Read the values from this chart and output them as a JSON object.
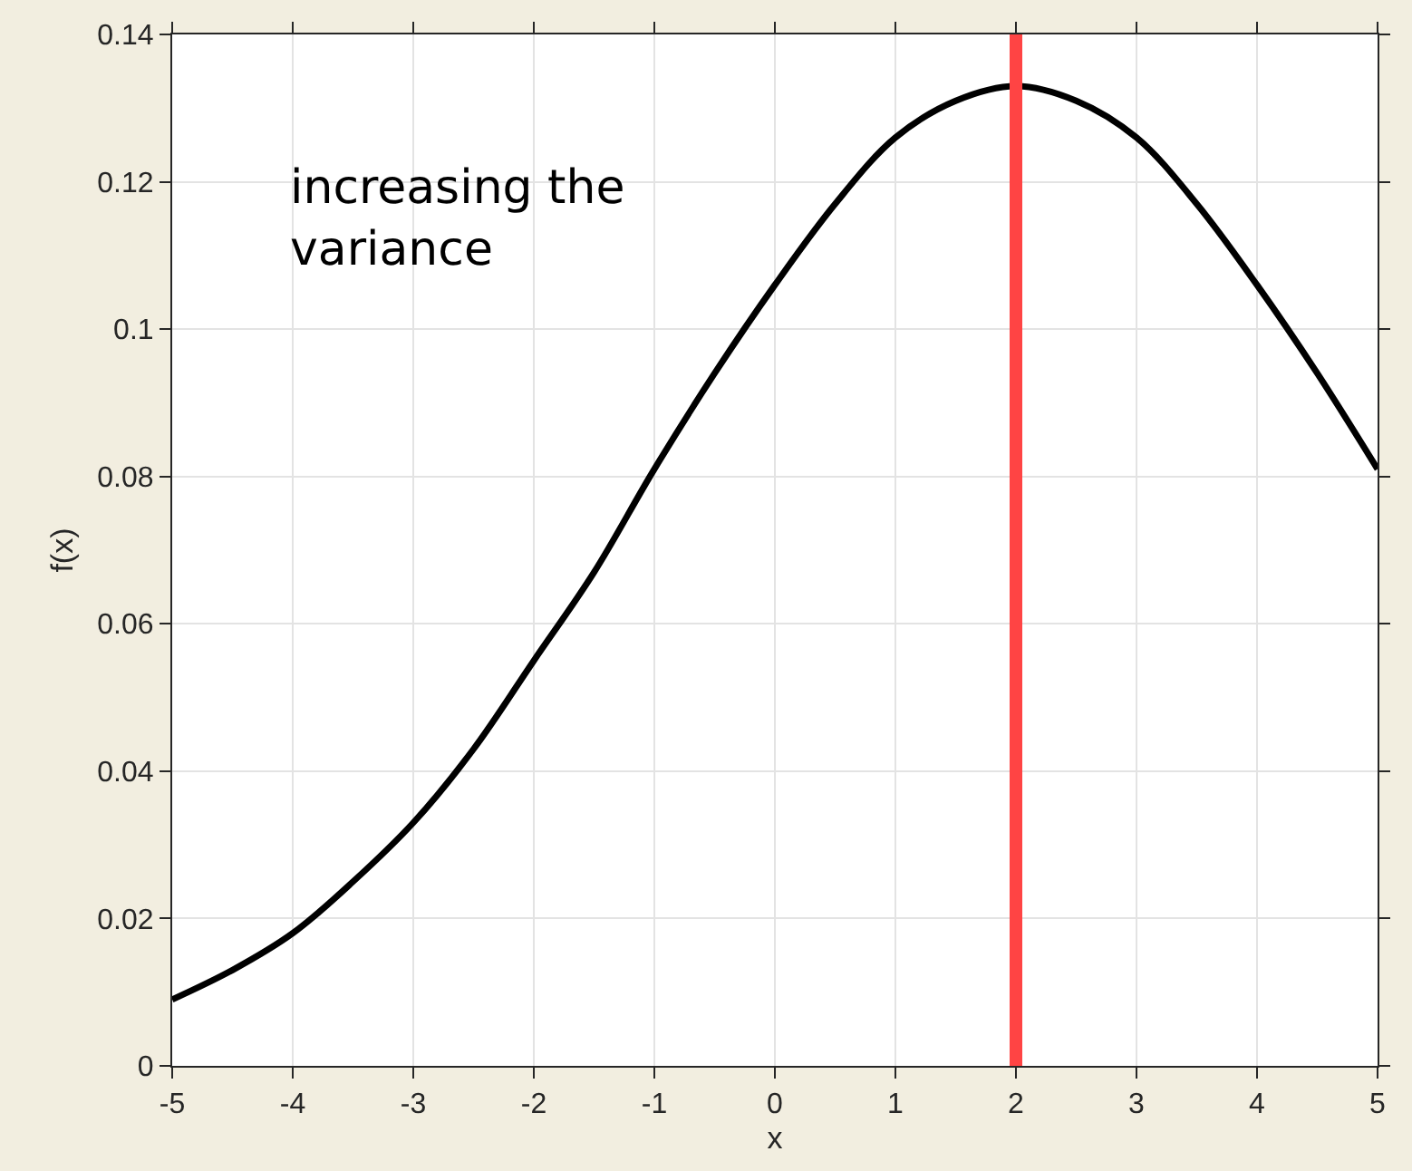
{
  "chart_data": {
    "type": "line",
    "xlabel": "x",
    "ylabel": "f(x)",
    "x": [
      -5,
      -4.5,
      -4,
      -3.5,
      -3,
      -2.5,
      -2,
      -1.5,
      -1,
      -0.5,
      0,
      0.5,
      1,
      1.5,
      2,
      2.5,
      3,
      3.5,
      4,
      4.5,
      5
    ],
    "series": [
      {
        "color": "#000000",
        "values": [
          0.009,
          0.013,
          0.018,
          0.025,
          0.033,
          0.043,
          0.055,
          0.067,
          0.081,
          0.094,
          0.106,
          0.117,
          0.126,
          0.131,
          0.133,
          0.131,
          0.126,
          0.117,
          0.106,
          0.094,
          0.081
        ]
      }
    ],
    "xlim": [
      -5,
      5
    ],
    "xticks": [
      -5,
      -4,
      -3,
      -2,
      -1,
      0,
      1,
      2,
      3,
      4,
      5
    ],
    "ylim": [
      0,
      0.14
    ],
    "yticks": [
      0,
      0.02,
      0.04,
      0.06,
      0.08,
      0.1,
      0.12,
      0.14
    ],
    "ref_lines": [
      {
        "axis": "x",
        "value": 2,
        "color": "#ff4444"
      }
    ],
    "annotations": [
      "increasing the\nvariance"
    ],
    "grid": true,
    "line_style": "solid",
    "marker": "none"
  }
}
